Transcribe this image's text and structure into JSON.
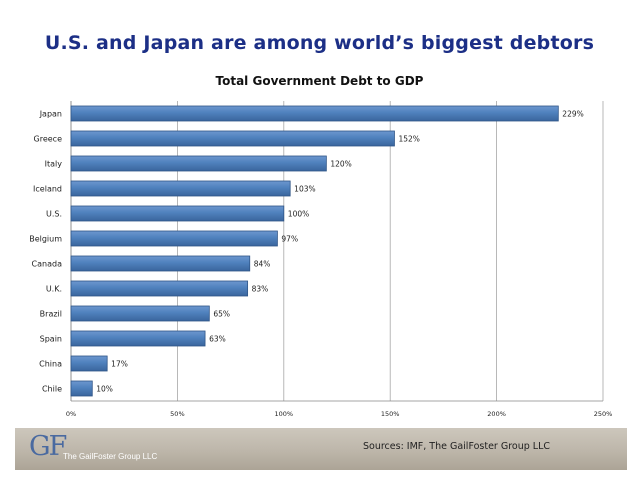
{
  "slide": {
    "title": "U.S. and Japan are among world’s biggest debtors"
  },
  "footer": {
    "logo": "GF",
    "company": "The GailFoster Group LLC",
    "sources": "Sources: IMF, The GailFoster Group LLC"
  },
  "colors": {
    "bar": "#4f81bd",
    "bar_dark": "#2f5587",
    "title": "#1c2f86"
  },
  "chart_data": {
    "type": "bar",
    "orientation": "horizontal",
    "title": "Total Government Debt to GDP",
    "categories": [
      "Japan",
      "Greece",
      "Italy",
      "Iceland",
      "U.S.",
      "Belgium",
      "Canada",
      "U.K.",
      "Brazil",
      "Spain",
      "China",
      "Chile"
    ],
    "values": [
      229,
      152,
      120,
      103,
      100,
      97,
      84,
      83,
      65,
      63,
      17,
      10
    ],
    "value_labels": [
      "229%",
      "152%",
      "120%",
      "103%",
      "100%",
      "97%",
      "84%",
      "83%",
      "65%",
      "63%",
      "17%",
      "10%"
    ],
    "xlim": [
      0,
      250
    ],
    "x_ticks": [
      0,
      50,
      100,
      150,
      200,
      250
    ],
    "x_tick_labels": [
      "0%",
      "50%",
      "100%",
      "150%",
      "200%",
      "250%"
    ],
    "grid": "vertical",
    "legend": "none"
  }
}
